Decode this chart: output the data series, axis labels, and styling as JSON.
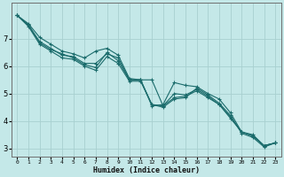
{
  "xlabel": "Humidex (Indice chaleur)",
  "bg_color": "#c4e8e8",
  "line_color": "#1a6b6b",
  "grid_color": "#a8d0d0",
  "xlim": [
    -0.5,
    23.5
  ],
  "ylim": [
    2.7,
    8.3
  ],
  "xticks": [
    0,
    1,
    2,
    3,
    4,
    5,
    6,
    7,
    8,
    9,
    10,
    11,
    12,
    13,
    14,
    15,
    16,
    17,
    18,
    19,
    20,
    21,
    22,
    23
  ],
  "yticks": [
    3,
    4,
    5,
    6,
    7
  ],
  "series": [
    {
      "x": [
        0,
        1,
        2,
        3,
        4,
        5,
        6,
        7,
        8,
        9,
        10,
        11,
        12,
        13,
        14,
        15,
        16,
        17,
        18,
        19,
        20,
        21,
        22,
        23
      ],
      "y": [
        7.85,
        7.55,
        7.05,
        6.8,
        6.55,
        6.45,
        6.3,
        6.55,
        6.65,
        6.4,
        5.55,
        5.5,
        5.5,
        4.55,
        5.0,
        4.95,
        5.15,
        4.9,
        4.6,
        4.15,
        3.6,
        3.45,
        3.1,
        3.2
      ]
    },
    {
      "x": [
        0,
        1,
        2,
        3,
        4,
        5,
        6,
        7,
        8,
        9,
        10,
        11,
        12,
        13,
        14,
        15,
        16,
        17,
        18,
        19,
        20,
        21,
        22,
        23
      ],
      "y": [
        7.85,
        7.5,
        6.9,
        6.65,
        6.4,
        6.35,
        6.1,
        6.1,
        6.45,
        6.3,
        5.5,
        5.5,
        4.6,
        4.55,
        4.85,
        4.9,
        5.1,
        4.85,
        4.6,
        4.1,
        3.6,
        3.45,
        3.1,
        3.2
      ]
    },
    {
      "x": [
        0,
        1,
        2,
        3,
        4,
        5,
        6,
        7,
        8,
        9,
        10,
        11,
        12,
        13,
        14,
        15,
        16,
        17,
        18,
        19,
        20,
        21,
        22,
        23
      ],
      "y": [
        7.85,
        7.5,
        6.85,
        6.6,
        6.45,
        6.3,
        6.05,
        5.95,
        6.5,
        6.2,
        5.5,
        5.5,
        4.55,
        4.6,
        5.4,
        5.3,
        5.25,
        5.0,
        4.8,
        4.3,
        3.6,
        3.5,
        3.1,
        3.2
      ]
    },
    {
      "x": [
        0,
        1,
        2,
        3,
        4,
        5,
        6,
        7,
        8,
        9,
        10,
        11,
        12,
        13,
        14,
        15,
        16,
        17,
        18,
        19,
        20,
        21,
        22,
        23
      ],
      "y": [
        7.85,
        7.45,
        6.8,
        6.55,
        6.3,
        6.25,
        6.0,
        5.85,
        6.35,
        6.1,
        5.45,
        5.45,
        4.6,
        4.5,
        4.8,
        4.85,
        5.2,
        4.95,
        4.65,
        4.2,
        3.55,
        3.4,
        3.05,
        3.2
      ]
    }
  ]
}
